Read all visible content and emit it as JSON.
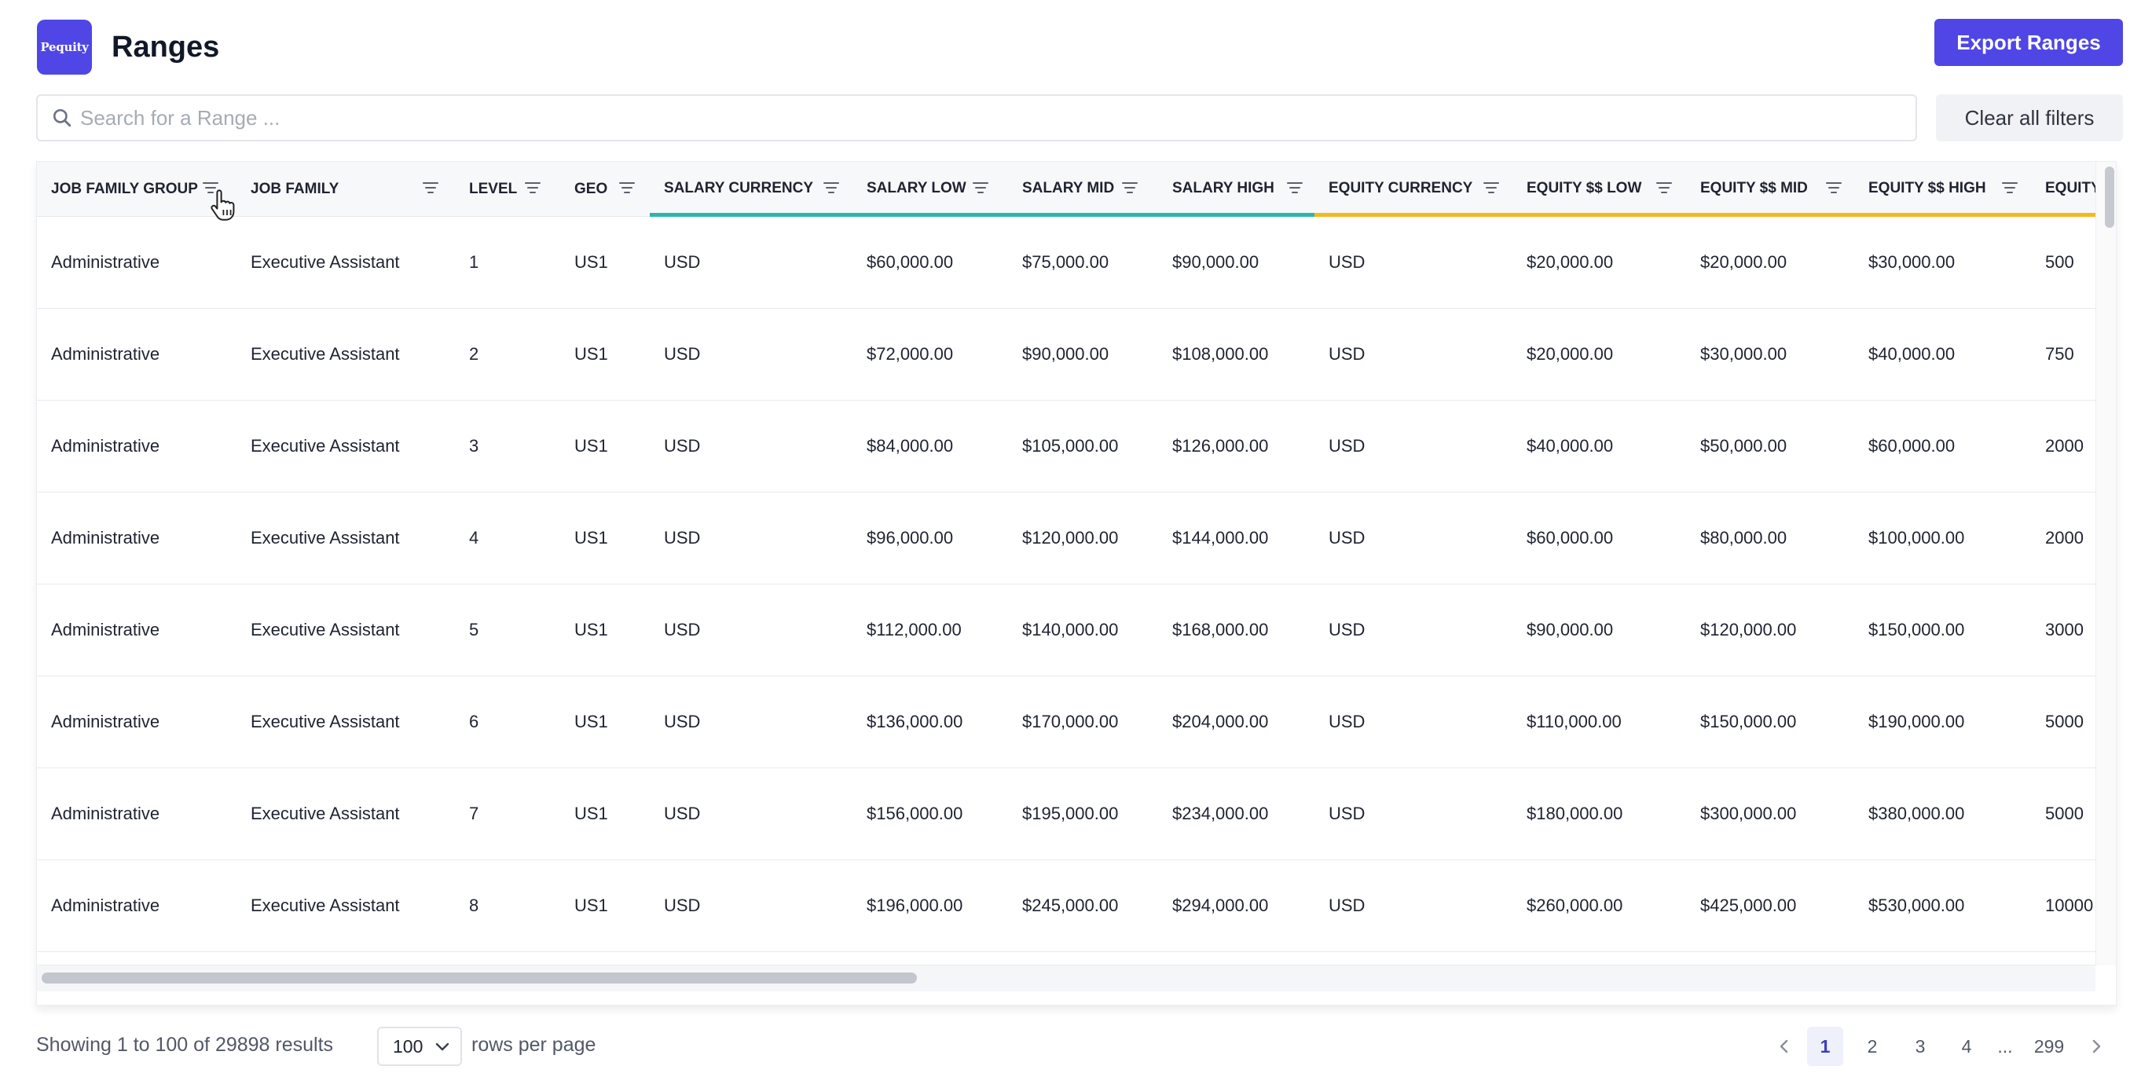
{
  "header": {
    "logo_text": "Pequity",
    "title": "Ranges",
    "export_label": "Export Ranges"
  },
  "search": {
    "placeholder": "Search for a Range ...",
    "value": ""
  },
  "clear_filters_label": "Clear all filters",
  "table": {
    "columns": [
      "JOB FAMILY GROUP",
      "JOB FAMILY",
      "LEVEL",
      "GEO",
      "SALARY CURRENCY",
      "SALARY LOW",
      "SALARY MID",
      "SALARY HIGH",
      "EQUITY CURRENCY",
      "EQUITY $$ LOW",
      "EQUITY $$ MID",
      "EQUITY $$ HIGH",
      "EQUITY"
    ],
    "group_colors": {
      "salary": "#2bb6ae",
      "equity": "#f5b91c"
    },
    "rows": [
      [
        "Administrative",
        "Executive Assistant",
        "1",
        "US1",
        "USD",
        "$60,000.00",
        "$75,000.00",
        "$90,000.00",
        "USD",
        "$20,000.00",
        "$20,000.00",
        "$30,000.00",
        "500"
      ],
      [
        "Administrative",
        "Executive Assistant",
        "2",
        "US1",
        "USD",
        "$72,000.00",
        "$90,000.00",
        "$108,000.00",
        "USD",
        "$20,000.00",
        "$30,000.00",
        "$40,000.00",
        "750"
      ],
      [
        "Administrative",
        "Executive Assistant",
        "3",
        "US1",
        "USD",
        "$84,000.00",
        "$105,000.00",
        "$126,000.00",
        "USD",
        "$40,000.00",
        "$50,000.00",
        "$60,000.00",
        "2000"
      ],
      [
        "Administrative",
        "Executive Assistant",
        "4",
        "US1",
        "USD",
        "$96,000.00",
        "$120,000.00",
        "$144,000.00",
        "USD",
        "$60,000.00",
        "$80,000.00",
        "$100,000.00",
        "2000"
      ],
      [
        "Administrative",
        "Executive Assistant",
        "5",
        "US1",
        "USD",
        "$112,000.00",
        "$140,000.00",
        "$168,000.00",
        "USD",
        "$90,000.00",
        "$120,000.00",
        "$150,000.00",
        "3000"
      ],
      [
        "Administrative",
        "Executive Assistant",
        "6",
        "US1",
        "USD",
        "$136,000.00",
        "$170,000.00",
        "$204,000.00",
        "USD",
        "$110,000.00",
        "$150,000.00",
        "$190,000.00",
        "5000"
      ],
      [
        "Administrative",
        "Executive Assistant",
        "7",
        "US1",
        "USD",
        "$156,000.00",
        "$195,000.00",
        "$234,000.00",
        "USD",
        "$180,000.00",
        "$300,000.00",
        "$380,000.00",
        "5000"
      ],
      [
        "Administrative",
        "Executive Assistant",
        "8",
        "US1",
        "USD",
        "$196,000.00",
        "$245,000.00",
        "$294,000.00",
        "USD",
        "$260,000.00",
        "$425,000.00",
        "$530,000.00",
        "10000"
      ]
    ]
  },
  "footer": {
    "showing_text": "Showing 1 to 100 of 29898 results",
    "rows_per_page_value": "100",
    "rows_per_page_label": "rows per page",
    "pages": [
      "1",
      "2",
      "3",
      "4",
      "...",
      "299"
    ],
    "current_page": "1"
  },
  "accent_color": "#4f46e5"
}
